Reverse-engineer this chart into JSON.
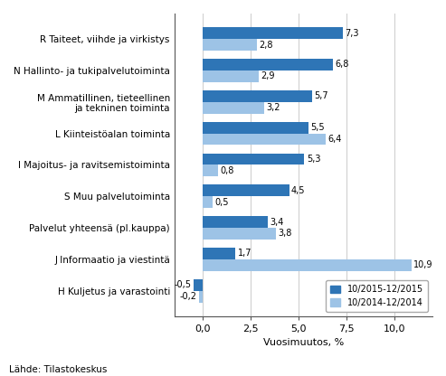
{
  "categories": [
    "R Taiteet, viihde ja virkistys",
    "N Hallinto- ja tukipalvelutoiminta",
    "M Ammatillinen, tieteellinen\nja tekninen toiminta",
    "L Kiinteistöalan toiminta",
    "I Majoitus- ja ravitsemistoiminta",
    "S Muu palvelutoiminta",
    "Palvelut yhteensä (pl.kauppa)",
    "J Informaatio ja viestintä",
    "H Kuljetus ja varastointi"
  ],
  "series1": [
    7.3,
    6.8,
    5.7,
    5.5,
    5.3,
    4.5,
    3.4,
    1.7,
    -0.5
  ],
  "series2": [
    2.8,
    2.9,
    3.2,
    6.4,
    0.8,
    0.5,
    3.8,
    10.9,
    -0.2
  ],
  "color1": "#2E75B6",
  "color2": "#9DC3E6",
  "legend1": "10/2015-12/2015",
  "legend2": "10/2014-12/2014",
  "xlabel": "Vuosimuutos, %",
  "xlim": [
    -1.5,
    12.0
  ],
  "xticks": [
    0.0,
    2.5,
    5.0,
    7.5,
    10.0
  ],
  "xtick_labels": [
    "0,0",
    "2,5",
    "5,0",
    "7,5",
    "10,0"
  ],
  "footnote": "Lähde: Tilastokeskus",
  "bar_height": 0.37,
  "background_color": "#ffffff"
}
